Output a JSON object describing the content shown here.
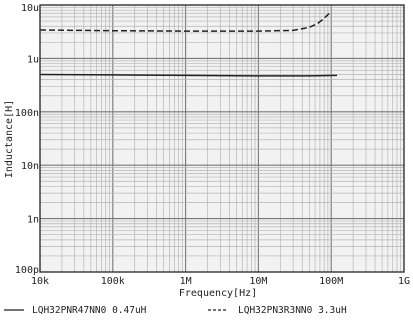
{
  "chart_data": {
    "type": "line",
    "xlabel": "Frequency[Hz]",
    "ylabel": "Inductance[H]",
    "x_scale": "log",
    "y_scale": "log",
    "xlim": [
      10000,
      1000000000
    ],
    "ylim": [
      1e-10,
      1e-05
    ],
    "x_ticks": [
      {
        "value": 10000,
        "label": "10k"
      },
      {
        "value": 100000,
        "label": "100k"
      },
      {
        "value": 1000000,
        "label": "1M"
      },
      {
        "value": 10000000,
        "label": "10M"
      },
      {
        "value": 100000000,
        "label": "100M"
      },
      {
        "value": 1000000000,
        "label": "1G"
      }
    ],
    "y_ticks": [
      {
        "value": 1e-05,
        "label": "10u"
      },
      {
        "value": 1e-06,
        "label": "1u"
      },
      {
        "value": 1e-07,
        "label": "100n"
      },
      {
        "value": 1e-08,
        "label": "10n"
      },
      {
        "value": 1e-09,
        "label": "1n"
      },
      {
        "value": 1e-10,
        "label": "100p"
      }
    ],
    "grid": true,
    "legend_position": "bottom",
    "series": [
      {
        "name": "LQH32PNR47NN0 0.47uH",
        "style": "solid",
        "color": "#222222",
        "x": [
          10000,
          100000,
          1000000,
          10000000,
          50000000,
          120000000
        ],
        "y": [
          5e-07,
          4.9e-07,
          4.8e-07,
          4.7e-07,
          4.7e-07,
          4.8e-07
        ]
      },
      {
        "name": "LQH32PN3R3NN0 3.3uH",
        "style": "dashed",
        "color": "#222222",
        "x": [
          10000,
          100000,
          1000000,
          10000000,
          30000000,
          50000000,
          65000000,
          80000000,
          90000000,
          95000000
        ],
        "y": [
          3.4e-06,
          3.3e-06,
          3.25e-06,
          3.25e-06,
          3.35e-06,
          3.8e-06,
          4.5e-06,
          5.6e-06,
          6.6e-06,
          7e-06
        ]
      }
    ]
  }
}
